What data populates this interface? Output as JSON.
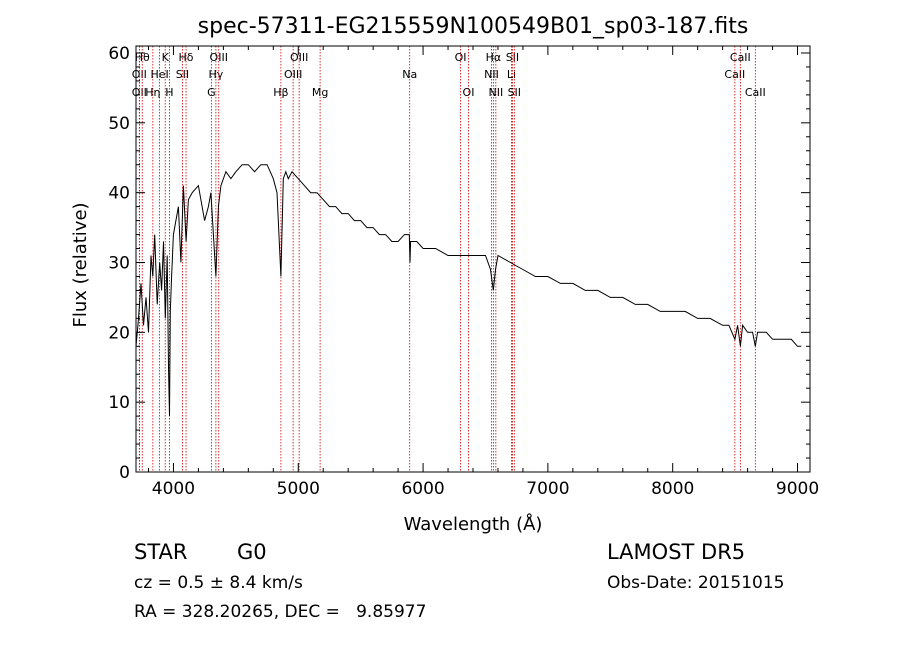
{
  "chart_data": {
    "type": "line",
    "title": "spec-57311-EG215559N100549B01_sp03-187.fits",
    "xlabel": "Wavelength (Å)",
    "ylabel": "Flux (relative)",
    "xlim": [
      3700,
      9100
    ],
    "ylim": [
      0,
      61
    ],
    "xticks": [
      4000,
      5000,
      6000,
      7000,
      8000,
      9000
    ],
    "yticks": [
      0,
      10,
      20,
      30,
      40,
      50,
      60
    ],
    "grid": false,
    "line_color": "#000000",
    "marker_color": "#cc0000",
    "series": [
      {
        "x": [
          3700,
          3720,
          3740,
          3760,
          3780,
          3800,
          3820,
          3835,
          3850,
          3870,
          3890,
          3905,
          3920,
          3935,
          3950,
          3960,
          3968,
          3975,
          3985,
          4000,
          4020,
          4040,
          4060,
          4080,
          4101,
          4120,
          4150,
          4200,
          4250,
          4280,
          4300,
          4320,
          4340,
          4360,
          4380,
          4420,
          4460,
          4500,
          4550,
          4600,
          4650,
          4700,
          4750,
          4800,
          4830,
          4861,
          4880,
          4900,
          4920,
          4950,
          5000,
          5050,
          5100,
          5150,
          5200,
          5250,
          5300,
          5350,
          5400,
          5450,
          5500,
          5550,
          5600,
          5650,
          5700,
          5750,
          5800,
          5850,
          5890,
          5895,
          5900,
          5950,
          6000,
          6100,
          6200,
          6300,
          6400,
          6500,
          6540,
          6563,
          6580,
          6600,
          6700,
          6800,
          6900,
          7000,
          7100,
          7200,
          7300,
          7400,
          7500,
          7600,
          7700,
          7800,
          7900,
          8000,
          8100,
          8200,
          8300,
          8400,
          8450,
          8498,
          8520,
          8542,
          8560,
          8600,
          8640,
          8662,
          8680,
          8700,
          8750,
          8800,
          8850,
          8900,
          8950,
          9000,
          9030
        ],
        "y": [
          18,
          22,
          27,
          21,
          25,
          20,
          31,
          28,
          34,
          24,
          30,
          26,
          33,
          22,
          31,
          15,
          8,
          23,
          28,
          34,
          36,
          38,
          30,
          41,
          33,
          39,
          40,
          41,
          36,
          38,
          40,
          34,
          28,
          38,
          41,
          43,
          42,
          43,
          44,
          44,
          43,
          44,
          44,
          42,
          40,
          28,
          42,
          43,
          42,
          43,
          42,
          41,
          40,
          40,
          39,
          38,
          38,
          37,
          37,
          36,
          36,
          35,
          35,
          34,
          34,
          33,
          33,
          34,
          34,
          30,
          33,
          33,
          32,
          32,
          31,
          31,
          31,
          31,
          29,
          26,
          29,
          31,
          30,
          29,
          28,
          28,
          27,
          27,
          26,
          26,
          25,
          25,
          24,
          24,
          23,
          23,
          23,
          22,
          22,
          21,
          21,
          19,
          21,
          18,
          21,
          20,
          20,
          18,
          20,
          20,
          20,
          19,
          19,
          19,
          19,
          18,
          18
        ]
      }
    ],
    "lines": [
      {
        "label": "OII",
        "x": 3727,
        "row": 2
      },
      {
        "label": "OII",
        "x": 3727,
        "row": 3
      },
      {
        "label": "Hθ",
        "x": 3750,
        "row": 1
      },
      {
        "label": "Hη",
        "x": 3835,
        "row": 3
      },
      {
        "label": "HeI",
        "x": 3889,
        "row": 2
      },
      {
        "label": "K",
        "x": 3934,
        "row": 1
      },
      {
        "label": "H",
        "x": 3968,
        "row": 3
      },
      {
        "label": "SII",
        "x": 4072,
        "row": 2
      },
      {
        "label": "Hδ",
        "x": 4101,
        "row": 1
      },
      {
        "label": "Hγ",
        "x": 4340,
        "row": 2
      },
      {
        "label": "G",
        "x": 4304,
        "row": 3
      },
      {
        "label": "OIII",
        "x": 4363,
        "row": 1
      },
      {
        "label": "Hβ",
        "x": 4861,
        "row": 3
      },
      {
        "label": "OIII",
        "x": 4959,
        "row": 2
      },
      {
        "label": "OIII",
        "x": 5007,
        "row": 1
      },
      {
        "label": "Mg",
        "x": 5175,
        "row": 3
      },
      {
        "label": "Na",
        "x": 5893,
        "row": 2
      },
      {
        "label": "OI",
        "x": 6300,
        "row": 1
      },
      {
        "label": "OI",
        "x": 6364,
        "row": 3
      },
      {
        "label": "NII",
        "x": 6548,
        "row": 2
      },
      {
        "label": "Hα",
        "x": 6563,
        "row": 1
      },
      {
        "label": "NII",
        "x": 6583,
        "row": 3
      },
      {
        "label": "SII",
        "x": 6716,
        "row": 1
      },
      {
        "label": "Li",
        "x": 6708,
        "row": 2
      },
      {
        "label": "SII",
        "x": 6731,
        "row": 3
      },
      {
        "label": "CaII",
        "x": 8498,
        "row": 2
      },
      {
        "label": "CaII",
        "x": 8542,
        "row": 1
      },
      {
        "label": "CaII",
        "x": 8662,
        "row": 3
      }
    ]
  },
  "info": {
    "class": "STAR",
    "subclass": "G0",
    "survey": "LAMOST DR5",
    "cz": "cz = 0.5 ± 8.4 km/s",
    "obs_date": "Obs-Date: 20151015",
    "coords": "RA = 328.20265, DEC =   9.85977"
  }
}
